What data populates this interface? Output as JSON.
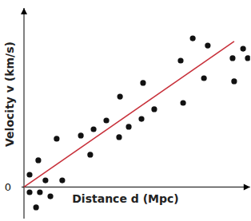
{
  "chart_data": {
    "type": "scatter",
    "x_label": "Distance d (Mpc)",
    "y_label": "Velocity v (km/s)",
    "xlim": [
      0,
      101
    ],
    "ylim": [
      -18,
      102
    ],
    "yticks": [
      0
    ],
    "tick_labels": "y",
    "grid": false,
    "series": [
      {
        "type": "scatter",
        "color": "#111111",
        "marker": "circle",
        "x": [
          2.5,
          2.5,
          6.4,
          5.4,
          7.1,
          9.6,
          11.8,
          14.6,
          17.1,
          25.4,
          29.6,
          31.1,
          36.8,
          42.9,
          42.5,
          46.8,
          53.2,
          52.5,
          58.2,
          70.0,
          71.1,
          75.4,
          82.1,
          80.4,
          93.2,
          93.9,
          97.9,
          100.0
        ],
        "values": [
          7.0,
          -3.0,
          15.2,
          -11.6,
          -3.0,
          3.8,
          -5.3,
          27.5,
          3.8,
          29.3,
          18.4,
          32.9,
          37.9,
          51.5,
          28.4,
          34.3,
          59.3,
          38.8,
          44.3,
          72.0,
          47.9,
          84.7,
          80.6,
          62.0,
          73.4,
          60.2,
          78.8,
          73.4
        ]
      },
      {
        "type": "line",
        "color": "#c8303a",
        "line_style": "solid",
        "x": [
          0,
          93.9
        ],
        "values": [
          0,
          83
        ]
      }
    ]
  }
}
